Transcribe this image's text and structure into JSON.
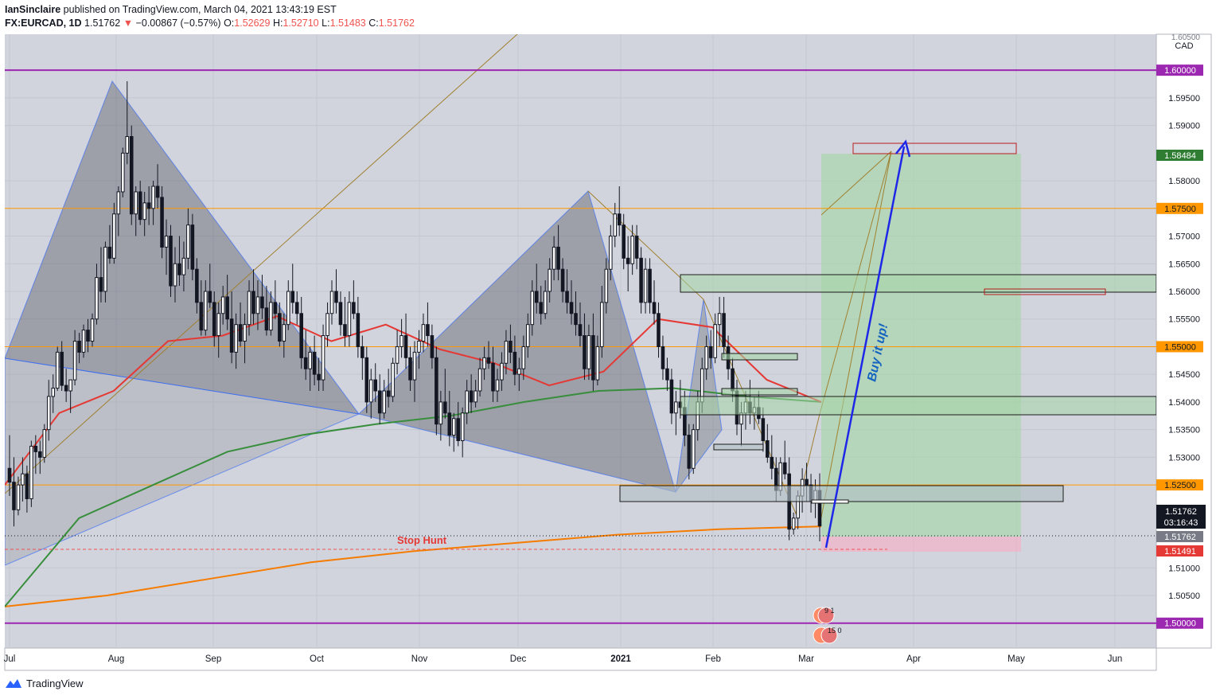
{
  "header": {
    "publisher": "IanSinclaire",
    "published_text": "published on TradingView.com, March 04, 2021 13:43:19 EST",
    "symbol": "FX:EURCAD, 1D",
    "last": "1.51762",
    "change_arrow": "▼",
    "change": "−0.00867 (−0.57%)",
    "o_label": "O:",
    "o_value": "1.52629",
    "h_label": "H:",
    "h_value": "1.52710",
    "l_label": "L:",
    "l_value": "1.51483",
    "c_label": "C:",
    "c_value": "1.51762"
  },
  "footer": {
    "brand": "TradingView"
  },
  "chart_data": {
    "type": "candlestick",
    "currency": "CAD",
    "ylim": [
      1.4955,
      1.6065
    ],
    "x_ticks": [
      "Jul",
      "Aug",
      "Sep",
      "Oct",
      "Nov",
      "Dec",
      "2021",
      "Feb",
      "Mar",
      "Apr",
      "May",
      "Jun"
    ],
    "y_ticks": [
      "1.59500",
      "1.59000",
      "1.58000",
      "1.57000",
      "1.56500",
      "1.56000",
      "1.55500",
      "1.54500",
      "1.54000",
      "1.53500",
      "1.53000",
      "1.51000",
      "1.50500"
    ],
    "y_tick_values": [
      1.595,
      1.59,
      1.58,
      1.57,
      1.565,
      1.56,
      1.555,
      1.545,
      1.54,
      1.535,
      1.53,
      1.51,
      1.505
    ],
    "top_tick_partial": "1.60500",
    "horizontal_levels": [
      {
        "value": 1.6,
        "label": "1.60000",
        "color": "#9c27b0"
      },
      {
        "value": 1.575,
        "label": "1.57500",
        "color": "#ff9800"
      },
      {
        "value": 1.55,
        "label": "1.55000",
        "color": "#ff9800"
      },
      {
        "value": 1.525,
        "label": "1.52500",
        "color": "#ff9800"
      },
      {
        "value": 1.5,
        "label": "1.50000",
        "color": "#9c27b0"
      }
    ],
    "price_tags": {
      "target": "1.58484",
      "stop": "1.51491",
      "current": "1.51762",
      "current_box": "1.51762",
      "countdown": "03:16:43"
    },
    "annotations": {
      "buy_text": "Buy it up!",
      "stop_hunt": "Stop Hunt"
    },
    "event_badges": [
      "9 1",
      "15 0"
    ],
    "candles_ohlc": [
      [
        1.528,
        1.534,
        1.523,
        1.5255
      ],
      [
        1.5255,
        1.53,
        1.5175,
        1.5205
      ],
      [
        1.5205,
        1.5265,
        1.5195,
        1.525
      ],
      [
        1.525,
        1.53,
        1.522,
        1.527
      ],
      [
        1.527,
        1.5285,
        1.52,
        1.5225
      ],
      [
        1.5225,
        1.533,
        1.521,
        1.532
      ],
      [
        1.532,
        1.534,
        1.527,
        1.531
      ],
      [
        1.531,
        1.533,
        1.527,
        1.53
      ],
      [
        1.53,
        1.536,
        1.529,
        1.535
      ],
      [
        1.535,
        1.544,
        1.533,
        1.541
      ],
      [
        1.541,
        1.545,
        1.538,
        1.5425
      ],
      [
        1.5425,
        1.55,
        1.542,
        1.549
      ],
      [
        1.549,
        1.551,
        1.542,
        1.543
      ],
      [
        1.543,
        1.546,
        1.54,
        1.542
      ],
      [
        1.542,
        1.544,
        1.538,
        1.544
      ],
      [
        1.544,
        1.553,
        1.543,
        1.551
      ],
      [
        1.551,
        1.5525,
        1.547,
        1.549
      ],
      [
        1.549,
        1.554,
        1.548,
        1.553
      ],
      [
        1.553,
        1.555,
        1.549,
        1.551
      ],
      [
        1.551,
        1.556,
        1.55,
        1.555
      ],
      [
        1.555,
        1.565,
        1.554,
        1.5625
      ],
      [
        1.5625,
        1.568,
        1.558,
        1.56
      ],
      [
        1.56,
        1.569,
        1.558,
        1.568
      ],
      [
        1.568,
        1.572,
        1.565,
        1.566
      ],
      [
        1.566,
        1.576,
        1.565,
        1.574
      ],
      [
        1.574,
        1.579,
        1.57,
        1.578
      ],
      [
        1.578,
        1.586,
        1.577,
        1.585
      ],
      [
        1.585,
        1.598,
        1.583,
        1.588
      ],
      [
        1.588,
        1.59,
        1.572,
        1.574
      ],
      [
        1.574,
        1.579,
        1.57,
        1.578
      ],
      [
        1.578,
        1.58,
        1.572,
        1.573
      ],
      [
        1.573,
        1.578,
        1.57,
        1.576
      ],
      [
        1.576,
        1.579,
        1.572,
        1.575
      ],
      [
        1.575,
        1.58,
        1.572,
        1.579
      ],
      [
        1.579,
        1.583,
        1.575,
        1.577
      ],
      [
        1.577,
        1.579,
        1.566,
        1.568
      ],
      [
        1.568,
        1.573,
        1.563,
        1.57
      ],
      [
        1.57,
        1.572,
        1.559,
        1.561
      ],
      [
        1.561,
        1.568,
        1.558,
        1.565
      ],
      [
        1.565,
        1.57,
        1.561,
        1.563
      ],
      [
        1.563,
        1.569,
        1.56,
        1.566
      ],
      [
        1.566,
        1.575,
        1.564,
        1.572
      ],
      [
        1.572,
        1.574,
        1.562,
        1.564
      ],
      [
        1.564,
        1.566,
        1.556,
        1.558
      ],
      [
        1.558,
        1.562,
        1.552,
        1.553
      ],
      [
        1.553,
        1.562,
        1.552,
        1.56
      ],
      [
        1.56,
        1.565,
        1.557,
        1.558
      ],
      [
        1.558,
        1.56,
        1.55,
        1.552
      ],
      [
        1.552,
        1.558,
        1.548,
        1.556
      ],
      [
        1.556,
        1.561,
        1.554,
        1.559
      ],
      [
        1.559,
        1.563,
        1.553,
        1.555
      ],
      [
        1.555,
        1.56,
        1.547,
        1.549
      ],
      [
        1.549,
        1.556,
        1.546,
        1.554
      ],
      [
        1.554,
        1.558,
        1.55,
        1.551
      ],
      [
        1.551,
        1.556,
        1.547,
        1.554
      ],
      [
        1.554,
        1.562,
        1.552,
        1.56
      ],
      [
        1.56,
        1.564,
        1.554,
        1.556
      ],
      [
        1.556,
        1.562,
        1.553,
        1.559
      ],
      [
        1.559,
        1.563,
        1.555,
        1.557
      ],
      [
        1.557,
        1.561,
        1.552,
        1.553
      ],
      [
        1.553,
        1.56,
        1.552,
        1.558
      ],
      [
        1.558,
        1.562,
        1.555,
        1.556
      ],
      [
        1.556,
        1.558,
        1.55,
        1.551
      ],
      [
        1.551,
        1.556,
        1.548,
        1.554
      ],
      [
        1.554,
        1.562,
        1.553,
        1.56
      ],
      [
        1.56,
        1.565,
        1.556,
        1.558
      ],
      [
        1.558,
        1.56,
        1.554,
        1.556
      ],
      [
        1.556,
        1.559,
        1.546,
        1.548
      ],
      [
        1.548,
        1.553,
        1.544,
        1.546
      ],
      [
        1.546,
        1.55,
        1.542,
        1.549
      ],
      [
        1.549,
        1.552,
        1.543,
        1.545
      ],
      [
        1.545,
        1.548,
        1.542,
        1.544
      ],
      [
        1.544,
        1.554,
        1.542,
        1.552
      ],
      [
        1.552,
        1.558,
        1.55,
        1.556
      ],
      [
        1.556,
        1.562,
        1.554,
        1.56
      ],
      [
        1.56,
        1.564,
        1.556,
        1.558
      ],
      [
        1.558,
        1.56,
        1.552,
        1.554
      ],
      [
        1.554,
        1.559,
        1.55,
        1.552
      ],
      [
        1.552,
        1.56,
        1.55,
        1.558
      ],
      [
        1.558,
        1.562,
        1.555,
        1.556
      ],
      [
        1.556,
        1.559,
        1.548,
        1.55
      ],
      [
        1.55,
        1.552,
        1.544,
        1.548
      ],
      [
        1.548,
        1.55,
        1.538,
        1.54
      ],
      [
        1.54,
        1.546,
        1.537,
        1.544
      ],
      [
        1.544,
        1.547,
        1.54,
        1.542
      ],
      [
        1.542,
        1.545,
        1.536,
        1.538
      ],
      [
        1.538,
        1.544,
        1.537,
        1.542
      ],
      [
        1.542,
        1.546,
        1.539,
        1.541
      ],
      [
        1.541,
        1.548,
        1.54,
        1.547
      ],
      [
        1.547,
        1.553,
        1.545,
        1.55
      ],
      [
        1.55,
        1.555,
        1.548,
        1.552
      ],
      [
        1.552,
        1.556,
        1.546,
        1.548
      ],
      [
        1.548,
        1.55,
        1.542,
        1.544
      ],
      [
        1.544,
        1.551,
        1.54,
        1.549
      ],
      [
        1.549,
        1.553,
        1.546,
        1.551
      ],
      [
        1.551,
        1.556,
        1.549,
        1.554
      ],
      [
        1.554,
        1.558,
        1.55,
        1.552
      ],
      [
        1.552,
        1.554,
        1.546,
        1.548
      ],
      [
        1.548,
        1.55,
        1.534,
        1.536
      ],
      [
        1.536,
        1.542,
        1.533,
        1.54
      ],
      [
        1.54,
        1.546,
        1.537,
        1.538
      ],
      [
        1.538,
        1.542,
        1.532,
        1.534
      ],
      [
        1.534,
        1.538,
        1.531,
        1.537
      ],
      [
        1.537,
        1.54,
        1.532,
        1.533
      ],
      [
        1.533,
        1.539,
        1.53,
        1.538
      ],
      [
        1.538,
        1.544,
        1.536,
        1.542
      ],
      [
        1.542,
        1.545,
        1.538,
        1.54
      ],
      [
        1.54,
        1.544,
        1.539,
        1.542
      ],
      [
        1.542,
        1.548,
        1.541,
        1.546
      ],
      [
        1.546,
        1.55,
        1.544,
        1.548
      ],
      [
        1.548,
        1.551,
        1.546,
        1.547
      ],
      [
        1.547,
        1.55,
        1.54,
        1.542
      ],
      [
        1.542,
        1.546,
        1.54,
        1.544
      ],
      [
        1.544,
        1.549,
        1.542,
        1.547
      ],
      [
        1.547,
        1.553,
        1.545,
        1.551
      ],
      [
        1.551,
        1.554,
        1.547,
        1.549
      ],
      [
        1.549,
        1.552,
        1.543,
        1.545
      ],
      [
        1.545,
        1.548,
        1.542,
        1.546
      ],
      [
        1.546,
        1.552,
        1.544,
        1.55
      ],
      [
        1.55,
        1.556,
        1.548,
        1.554
      ],
      [
        1.554,
        1.562,
        1.552,
        1.56
      ],
      [
        1.56,
        1.565,
        1.556,
        1.558
      ],
      [
        1.558,
        1.561,
        1.554,
        1.556
      ],
      [
        1.556,
        1.562,
        1.555,
        1.56
      ],
      [
        1.56,
        1.566,
        1.558,
        1.564
      ],
      [
        1.564,
        1.57,
        1.562,
        1.568
      ],
      [
        1.568,
        1.572,
        1.562,
        1.564
      ],
      [
        1.564,
        1.566,
        1.558,
        1.56
      ],
      [
        1.56,
        1.564,
        1.556,
        1.558
      ],
      [
        1.558,
        1.562,
        1.554,
        1.556
      ],
      [
        1.556,
        1.56,
        1.552,
        1.554
      ],
      [
        1.554,
        1.558,
        1.55,
        1.552
      ],
      [
        1.552,
        1.556,
        1.544,
        1.546
      ],
      [
        1.546,
        1.554,
        1.544,
        1.552
      ],
      [
        1.552,
        1.556,
        1.542,
        1.544
      ],
      [
        1.544,
        1.552,
        1.543,
        1.55
      ],
      [
        1.55,
        1.561,
        1.548,
        1.558
      ],
      [
        1.558,
        1.566,
        1.556,
        1.564
      ],
      [
        1.564,
        1.572,
        1.562,
        1.57
      ],
      [
        1.57,
        1.576,
        1.568,
        1.574
      ],
      [
        1.574,
        1.579,
        1.57,
        1.572
      ],
      [
        1.572,
        1.574,
        1.564,
        1.566
      ],
      [
        1.566,
        1.57,
        1.56,
        1.565
      ],
      [
        1.565,
        1.572,
        1.563,
        1.57
      ],
      [
        1.57,
        1.572,
        1.564,
        1.566
      ],
      [
        1.566,
        1.568,
        1.556,
        1.558
      ],
      [
        1.558,
        1.566,
        1.556,
        1.564
      ],
      [
        1.564,
        1.566,
        1.556,
        1.558
      ],
      [
        1.558,
        1.562,
        1.554,
        1.556
      ],
      [
        1.556,
        1.558,
        1.548,
        1.55
      ],
      [
        1.55,
        1.552,
        1.544,
        1.546
      ],
      [
        1.546,
        1.548,
        1.542,
        1.544
      ],
      [
        1.544,
        1.546,
        1.536,
        1.538
      ],
      [
        1.538,
        1.542,
        1.534,
        1.54
      ],
      [
        1.54,
        1.544,
        1.537,
        1.539
      ],
      [
        1.539,
        1.542,
        1.532,
        1.534
      ],
      [
        1.534,
        1.536,
        1.526,
        1.528
      ],
      [
        1.528,
        1.536,
        1.527,
        1.535
      ],
      [
        1.535,
        1.542,
        1.533,
        1.54
      ],
      [
        1.54,
        1.548,
        1.538,
        1.546
      ],
      [
        1.546,
        1.552,
        1.544,
        1.55
      ],
      [
        1.55,
        1.553,
        1.546,
        1.548
      ],
      [
        1.548,
        1.556,
        1.547,
        1.554
      ],
      [
        1.554,
        1.559,
        1.55,
        1.556
      ],
      [
        1.556,
        1.559,
        1.548,
        1.55
      ],
      [
        1.55,
        1.552,
        1.544,
        1.546
      ],
      [
        1.546,
        1.548,
        1.54,
        1.542
      ],
      [
        1.542,
        1.544,
        1.534,
        1.536
      ],
      [
        1.536,
        1.54,
        1.532,
        1.538
      ],
      [
        1.538,
        1.542,
        1.535,
        1.54
      ],
      [
        1.54,
        1.544,
        1.536,
        1.538
      ],
      [
        1.538,
        1.541,
        1.535,
        1.539
      ],
      [
        1.539,
        1.542,
        1.536,
        1.537
      ],
      [
        1.537,
        1.539,
        1.531,
        1.533
      ],
      [
        1.533,
        1.536,
        1.529,
        1.53
      ],
      [
        1.53,
        1.534,
        1.526,
        1.528
      ],
      [
        1.528,
        1.53,
        1.522,
        1.524
      ],
      [
        1.524,
        1.53,
        1.523,
        1.529
      ],
      [
        1.529,
        1.533,
        1.526,
        1.527
      ],
      [
        1.527,
        1.53,
        1.515,
        1.517
      ],
      [
        1.517,
        1.52,
        1.516,
        1.519
      ],
      [
        1.519,
        1.524,
        1.517,
        1.523
      ],
      [
        1.523,
        1.528,
        1.52,
        1.526
      ],
      [
        1.526,
        1.529,
        1.522,
        1.525
      ],
      [
        1.525,
        1.527,
        1.52,
        1.522
      ],
      [
        1.522,
        1.526,
        1.519,
        1.524
      ],
      [
        1.524,
        1.5271,
        1.5148,
        1.5176
      ]
    ],
    "ma_fast_red": [
      1.525,
      1.538,
      1.542,
      1.551,
      1.552,
      1.5555,
      1.551,
      1.554,
      1.5495,
      1.547,
      1.543,
      1.5455,
      1.555,
      1.5535,
      1.544,
      1.54
    ],
    "ma_mid_green": [
      1.503,
      1.519,
      1.525,
      1.531,
      1.534,
      1.536,
      1.5375,
      1.54,
      1.542,
      1.5425,
      1.541,
      1.54
    ],
    "ma_slow_orange": [
      1.503,
      1.505,
      1.508,
      1.511,
      1.513,
      1.5145,
      1.516,
      1.517,
      1.5175
    ]
  }
}
